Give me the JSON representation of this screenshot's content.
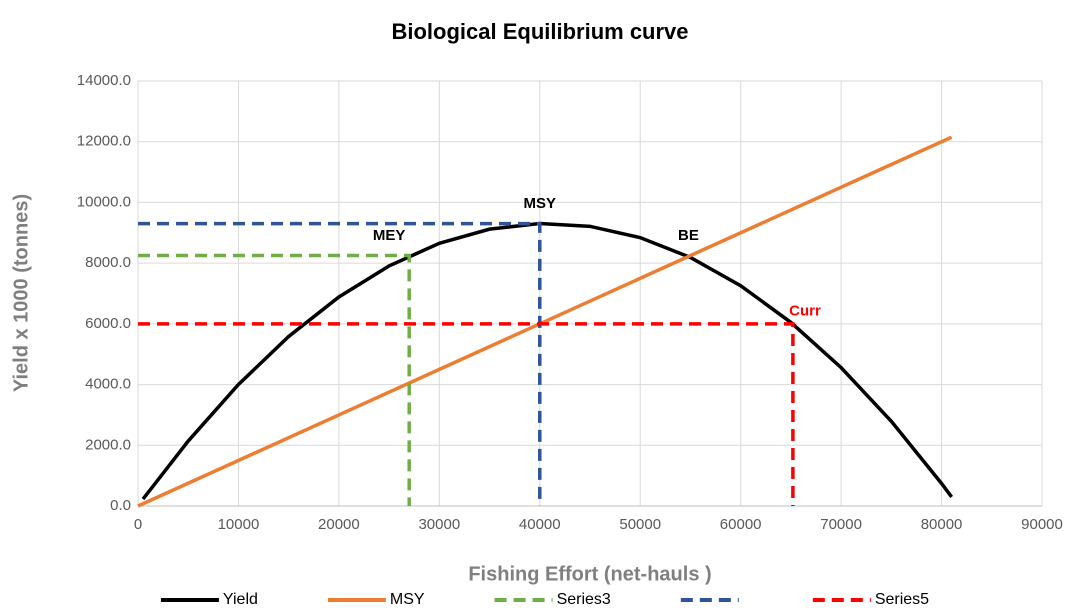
{
  "chart_data": {
    "type": "line",
    "title": "Biological Equilibrium curve",
    "x_label": "Fishing Effort (net-hauls )",
    "y_label": "Yield x 1000 (tonnes)",
    "xlim": [
      0,
      90000
    ],
    "xticks": [
      0,
      10000,
      20000,
      30000,
      40000,
      50000,
      60000,
      70000,
      80000,
      90000
    ],
    "ylim": [
      0,
      14000
    ],
    "yticks": [
      {
        "value": 0,
        "label": "0.0"
      },
      {
        "value": 2000,
        "label": "2000.0"
      },
      {
        "value": 4000,
        "label": "4000.0"
      },
      {
        "value": 6000,
        "label": "6000.0"
      },
      {
        "value": 8000,
        "label": "8000.0"
      },
      {
        "value": 10000,
        "label": "10000.0"
      },
      {
        "value": 12000,
        "label": "12000.0"
      },
      {
        "value": 14000,
        "label": "14000.0"
      }
    ],
    "grid": true,
    "legend": "bottom",
    "series": [
      {
        "name": "Yield",
        "color": "#000000",
        "dash": false,
        "x": [
          500,
          5000,
          10000,
          15000,
          20000,
          25000,
          30000,
          35000,
          40000,
          45000,
          50000,
          55000,
          60000,
          65000,
          70000,
          75000,
          80000,
          81000
        ],
        "values": [
          227,
          2140,
          4002,
          5584,
          6886,
          7910,
          8654,
          9120,
          9306,
          9212,
          8840,
          8188,
          7258,
          6048,
          4558,
          2790,
          742,
          300
        ]
      },
      {
        "name": "MSY",
        "color": "#ED7D31",
        "dash": false,
        "x": [
          0,
          81000
        ],
        "values": [
          0,
          12150
        ]
      },
      {
        "name": "Series3",
        "color": "#70AD47",
        "dash": true,
        "x": [
          0,
          27000,
          27000
        ],
        "values": [
          8250,
          8250,
          0
        ]
      },
      {
        "color": "#2F5597",
        "dash": true,
        "x": [
          0,
          40000,
          40000
        ],
        "values": [
          9300,
          9300,
          0
        ]
      },
      {
        "name": "Series5",
        "color": "#FF0000",
        "dash": true,
        "x": [
          0,
          65200,
          65200
        ],
        "values": [
          6000,
          6000,
          0
        ]
      }
    ],
    "annotations": [
      {
        "text": "MEY",
        "x": 25000,
        "y": 8900,
        "color": "#000000"
      },
      {
        "text": "MSY",
        "x": 40000,
        "y": 9950,
        "color": "#000000"
      },
      {
        "text": "BE",
        "x": 54800,
        "y": 8900,
        "color": "#000000"
      },
      {
        "text": "Curr",
        "x": 66400,
        "y": 6400,
        "color": "#FF0000"
      }
    ]
  }
}
